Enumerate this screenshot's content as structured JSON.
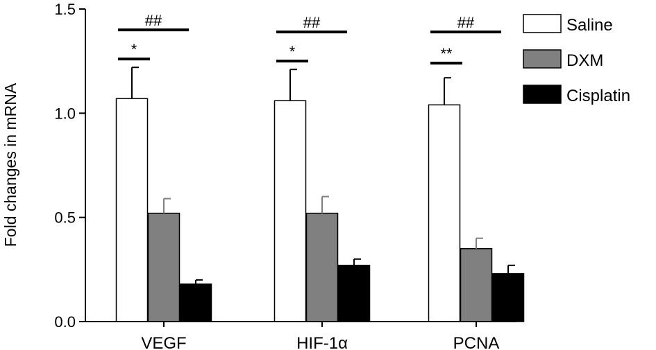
{
  "chart_data": {
    "type": "bar",
    "title": "",
    "xlabel": "",
    "ylabel": "Fold changes in mRNA",
    "ylim": [
      0,
      1.5
    ],
    "yticks": [
      "0.0",
      "0.5",
      "1.0",
      "1.5"
    ],
    "grid": false,
    "legend_position": "top-right",
    "categories": [
      "VEGF",
      "HIF-1α",
      "PCNA"
    ],
    "series": [
      {
        "name": "Saline",
        "color": "#ffffff",
        "values": [
          1.07,
          1.06,
          1.04
        ],
        "errors": [
          0.15,
          0.15,
          0.13
        ]
      },
      {
        "name": "DXM",
        "color": "#808080",
        "values": [
          0.52,
          0.52,
          0.35
        ],
        "errors": [
          0.07,
          0.08,
          0.05
        ]
      },
      {
        "name": "Cisplatin",
        "color": "#000000",
        "values": [
          0.18,
          0.27,
          0.23
        ],
        "errors": [
          0.02,
          0.03,
          0.04
        ]
      }
    ],
    "annotations": [
      {
        "category": 0,
        "from_series": 0,
        "to_series": 1,
        "label": "*",
        "level": 1.26
      },
      {
        "category": 0,
        "from_series": 0,
        "to_series": 2,
        "label": "##",
        "level": 1.4
      },
      {
        "category": 1,
        "from_series": 0,
        "to_series": 1,
        "label": "*",
        "level": 1.25
      },
      {
        "category": 1,
        "from_series": 0,
        "to_series": 2,
        "label": "##",
        "level": 1.39
      },
      {
        "category": 2,
        "from_series": 0,
        "to_series": 1,
        "label": "**",
        "level": 1.24
      },
      {
        "category": 2,
        "from_series": 0,
        "to_series": 2,
        "label": "##",
        "level": 1.39
      }
    ]
  }
}
